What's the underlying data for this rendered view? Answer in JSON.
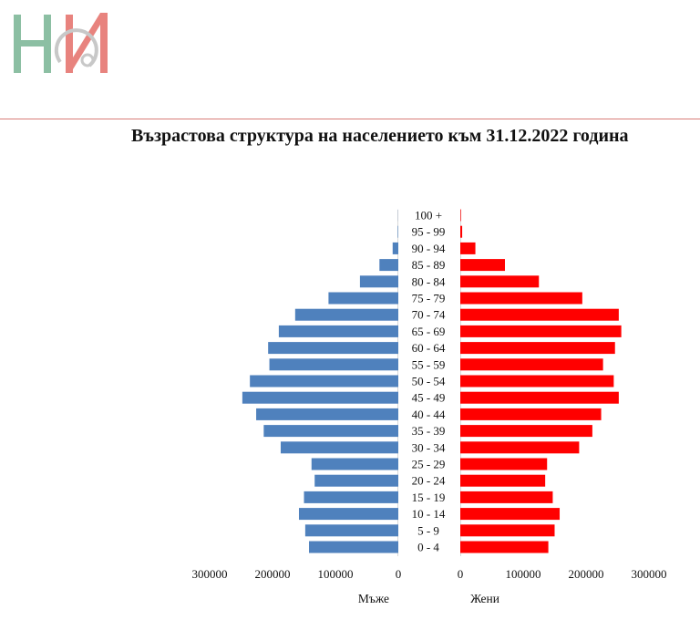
{
  "header": {
    "logo_icon": "hi-logo"
  },
  "colors": {
    "male": "#4f81bd",
    "female": "#ff0000",
    "rule": "#d87d78",
    "logo_green": "#8cbfa3",
    "logo_red": "#e8837e",
    "logo_gray": "#c8c8c8"
  },
  "chart_data": {
    "type": "bar",
    "orientation": "horizontal",
    "title": "Възрастова структура на населението към 31.12.2022 година",
    "categories": [
      "0 - 4",
      "5 - 9",
      "10 - 14",
      "15 - 19",
      "20 - 24",
      "25 - 29",
      "30 - 34",
      "35 - 39",
      "40 - 44",
      "45 - 49",
      "50 - 54",
      "55 - 59",
      "60 - 64",
      "65 - 69",
      "70 - 74",
      "75 - 79",
      "80 - 84",
      "85 - 89",
      "90 - 94",
      "95 - 99",
      "100 +"
    ],
    "series": [
      {
        "name": "Мъже",
        "values": [
          142000,
          148000,
          158000,
          150000,
          133000,
          138000,
          187000,
          214000,
          226000,
          248000,
          236000,
          205000,
          207000,
          190000,
          164000,
          111000,
          61000,
          30000,
          9000,
          800,
          200
        ]
      },
      {
        "name": "Жени",
        "values": [
          140000,
          150000,
          158000,
          147000,
          135000,
          138000,
          189000,
          210000,
          224000,
          252000,
          244000,
          227000,
          246000,
          256000,
          252000,
          194000,
          125000,
          71000,
          24000,
          3000,
          1000
        ]
      }
    ],
    "xlim_left": [
      0,
      300000
    ],
    "xlim_right": [
      0,
      300000
    ],
    "x_ticks_left": [
      "300000",
      "200000",
      "100000",
      "0"
    ],
    "x_ticks_right": [
      "0",
      "100000",
      "200000",
      "300000"
    ],
    "xlabel_left": "Мъже",
    "xlabel_right": "Жени",
    "grid": false,
    "legend": "none"
  }
}
